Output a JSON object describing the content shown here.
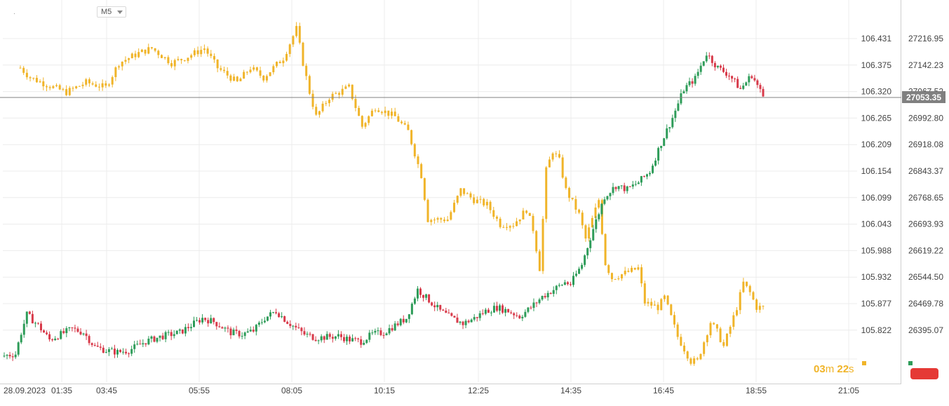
{
  "timeframe": {
    "label": "M5"
  },
  "countdown": {
    "minutes": "03",
    "m_unit": "m",
    "seconds": "22",
    "s_unit": "s"
  },
  "colors": {
    "gold": "#f0b429",
    "up": "#2e9c59",
    "down": "#d83a4a",
    "grid": "#ececec",
    "axis_text": "#444444",
    "price_line": "#808080",
    "price_label_bg": "#808080"
  },
  "chart_data": {
    "type": "candlestick",
    "grid": true,
    "x_axis": {
      "tick_labels": [
        "28.09.2023",
        "01:35",
        "03:45",
        "05:55",
        "08:05",
        "10:15",
        "12:25",
        "14:35",
        "16:45",
        "18:55",
        "21:05"
      ]
    },
    "y_axis_left": {
      "series": "gold",
      "range": [
        105.77,
        106.48
      ],
      "tick_labels": [
        "106.431",
        "106.375",
        "106.320",
        "106.265",
        "106.209",
        "106.154",
        "106.099",
        "106.043",
        "105.988",
        "105.932",
        "105.877",
        "105.822"
      ]
    },
    "y_axis_right": {
      "series": "red-green",
      "range": [
        26320,
        27290
      ],
      "tick_labels": [
        "27216.95",
        "27142.23",
        "27067.52",
        "26992.80",
        "26918.08",
        "26843.37",
        "26768.65",
        "26693.93",
        "26619.22",
        "26544.50",
        "26469.78",
        "26395.07"
      ],
      "current_price_label": "27053.35"
    },
    "series": [
      {
        "key": "gold",
        "axis": "left",
        "anchors": [
          [
            0,
            106.37
          ],
          [
            3,
            106.35
          ],
          [
            10,
            106.33
          ],
          [
            14,
            106.32
          ],
          [
            20,
            106.34
          ],
          [
            26,
            106.33
          ],
          [
            30,
            106.38
          ],
          [
            36,
            106.4
          ],
          [
            40,
            106.41
          ],
          [
            46,
            106.38
          ],
          [
            50,
            106.39
          ],
          [
            56,
            106.41
          ],
          [
            60,
            106.37
          ],
          [
            66,
            106.34
          ],
          [
            70,
            106.37
          ],
          [
            74,
            106.35
          ],
          [
            80,
            106.39
          ],
          [
            84,
            106.45
          ],
          [
            86,
            106.38
          ],
          [
            88,
            106.32
          ],
          [
            90,
            106.27
          ],
          [
            94,
            106.31
          ],
          [
            100,
            106.33
          ],
          [
            104,
            106.25
          ],
          [
            108,
            106.29
          ],
          [
            114,
            106.27
          ],
          [
            118,
            106.24
          ],
          [
            122,
            106.15
          ],
          [
            124,
            106.06
          ],
          [
            130,
            106.06
          ],
          [
            134,
            106.12
          ],
          [
            138,
            106.1
          ],
          [
            142,
            106.09
          ],
          [
            146,
            106.05
          ],
          [
            150,
            106.05
          ],
          [
            154,
            106.08
          ],
          [
            156,
            106.04
          ],
          [
            158,
            105.96
          ],
          [
            160,
            106.16
          ],
          [
            162,
            106.2
          ],
          [
            164,
            106.18
          ],
          [
            166,
            106.12
          ],
          [
            170,
            106.07
          ],
          [
            172,
            106.02
          ],
          [
            176,
            106.1
          ],
          [
            178,
            105.97
          ],
          [
            180,
            105.94
          ],
          [
            184,
            105.95
          ],
          [
            188,
            105.96
          ],
          [
            190,
            105.89
          ],
          [
            194,
            105.88
          ],
          [
            196,
            105.9
          ],
          [
            198,
            105.86
          ],
          [
            200,
            105.82
          ],
          [
            204,
            105.77
          ],
          [
            206,
            105.77
          ],
          [
            210,
            105.85
          ],
          [
            212,
            105.83
          ],
          [
            214,
            105.8
          ],
          [
            218,
            105.88
          ],
          [
            220,
            105.93
          ],
          [
            222,
            105.91
          ],
          [
            224,
            105.88
          ],
          [
            226,
            105.88
          ]
        ]
      },
      {
        "key": "red-green",
        "axis": "right",
        "anchors": [
          [
            0,
            26335
          ],
          [
            4,
            26340
          ],
          [
            6,
            26400
          ],
          [
            8,
            26450
          ],
          [
            12,
            26420
          ],
          [
            16,
            26380
          ],
          [
            20,
            26395
          ],
          [
            24,
            26410
          ],
          [
            28,
            26400
          ],
          [
            32,
            26360
          ],
          [
            36,
            26350
          ],
          [
            40,
            26345
          ],
          [
            44,
            26350
          ],
          [
            50,
            26375
          ],
          [
            56,
            26390
          ],
          [
            62,
            26400
          ],
          [
            66,
            26420
          ],
          [
            70,
            26440
          ],
          [
            74,
            26430
          ],
          [
            80,
            26400
          ],
          [
            84,
            26395
          ],
          [
            88,
            26405
          ],
          [
            92,
            26440
          ],
          [
            96,
            26460
          ],
          [
            100,
            26430
          ],
          [
            106,
            26395
          ],
          [
            110,
            26385
          ],
          [
            118,
            26390
          ],
          [
            122,
            26380
          ],
          [
            126,
            26375
          ],
          [
            130,
            26395
          ],
          [
            134,
            26400
          ],
          [
            138,
            26420
          ],
          [
            142,
            26440
          ],
          [
            146,
            26520
          ],
          [
            150,
            26490
          ],
          [
            154,
            26460
          ],
          [
            158,
            26440
          ],
          [
            162,
            26425
          ],
          [
            166,
            26440
          ],
          [
            170,
            26460
          ],
          [
            174,
            26470
          ],
          [
            178,
            26460
          ],
          [
            182,
            26445
          ],
          [
            186,
            26470
          ],
          [
            190,
            26500
          ],
          [
            194,
            26520
          ],
          [
            198,
            26540
          ],
          [
            200,
            26535
          ],
          [
            204,
            26590
          ],
          [
            208,
            26690
          ],
          [
            212,
            26780
          ],
          [
            216,
            26810
          ],
          [
            220,
            26800
          ],
          [
            224,
            26820
          ],
          [
            228,
            26850
          ],
          [
            232,
            26930
          ],
          [
            236,
            27000
          ],
          [
            240,
            27080
          ],
          [
            244,
            27110
          ],
          [
            248,
            27180
          ],
          [
            252,
            27140
          ],
          [
            256,
            27120
          ],
          [
            260,
            27080
          ],
          [
            264,
            27120
          ],
          [
            268,
            27060
          ]
        ]
      }
    ]
  }
}
